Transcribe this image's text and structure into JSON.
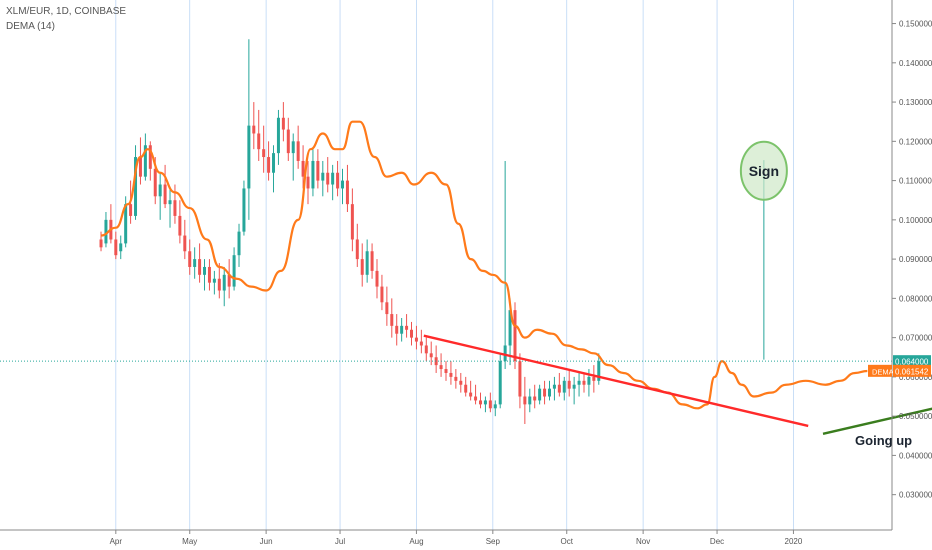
{
  "header": {
    "symbol_line": "XLM/EUR, 1D, COINBASE",
    "indicator_line": "DEMA (14)"
  },
  "price_labels": {
    "last": "0.064000",
    "dema_tag": "DEMA",
    "dema": "0.061542"
  },
  "annotations": {
    "sign": "Sign",
    "going_up": "Going up"
  },
  "colors": {
    "up": "#26a69a",
    "down": "#ef5350",
    "dema": "#ff7a1a",
    "last_price": "#26a69a",
    "red_trend": "#ff2a2a",
    "green_trend": "#3a7d1e",
    "circle": "#7cc36b"
  },
  "chart_data": {
    "type": "candlestick",
    "title": "XLM/EUR, 1D, COINBASE",
    "y_ticks": [
      "0.150000",
      "0.140000",
      "0.130000",
      "0.120000",
      "0.110000",
      "0.100000",
      "0.090000",
      "0.080000",
      "0.070000",
      "0.060000",
      "0.050000",
      "0.040000",
      "0.030000"
    ],
    "y_tick_values": [
      0.15,
      0.14,
      0.13,
      0.12,
      0.11,
      0.1,
      0.09,
      0.08,
      0.07,
      0.06,
      0.05,
      0.04,
      0.03
    ],
    "x_ticks": [
      "Apr",
      "May",
      "Jun",
      "Jul",
      "Aug",
      "Sep",
      "Oct",
      "Nov",
      "Dec",
      "2020"
    ],
    "x_tick_days": [
      0,
      30,
      61,
      91,
      122,
      153,
      183,
      214,
      244,
      275
    ],
    "ylim": [
      0.021,
      0.156
    ],
    "xlim_days": [
      -47,
      315
    ],
    "last_price": 0.064,
    "dema_last": 0.061542,
    "dema_series": [
      [
        -6,
        0.096
      ],
      [
        0,
        0.098
      ],
      [
        5,
        0.104
      ],
      [
        10,
        0.116
      ],
      [
        13,
        0.118
      ],
      [
        18,
        0.112
      ],
      [
        24,
        0.107
      ],
      [
        30,
        0.103
      ],
      [
        37,
        0.095
      ],
      [
        42,
        0.088
      ],
      [
        49,
        0.085
      ],
      [
        55,
        0.083
      ],
      [
        61,
        0.082
      ],
      [
        67,
        0.087
      ],
      [
        74,
        0.1
      ],
      [
        79,
        0.118
      ],
      [
        84,
        0.122
      ],
      [
        89,
        0.118
      ],
      [
        92,
        0.118
      ],
      [
        96,
        0.125
      ],
      [
        99,
        0.125
      ],
      [
        105,
        0.116
      ],
      [
        110,
        0.111
      ],
      [
        116,
        0.112
      ],
      [
        121,
        0.109
      ],
      [
        128,
        0.112
      ],
      [
        134,
        0.109
      ],
      [
        139,
        0.099
      ],
      [
        144,
        0.09
      ],
      [
        149,
        0.087
      ],
      [
        153,
        0.086
      ],
      [
        158,
        0.084
      ],
      [
        162,
        0.073
      ],
      [
        166,
        0.07
      ],
      [
        171,
        0.072
      ],
      [
        177,
        0.071
      ],
      [
        183,
        0.068
      ],
      [
        189,
        0.067
      ],
      [
        194,
        0.066
      ],
      [
        200,
        0.063
      ],
      [
        206,
        0.061
      ],
      [
        212,
        0.059
      ],
      [
        218,
        0.057
      ],
      [
        224,
        0.056
      ],
      [
        230,
        0.053
      ],
      [
        236,
        0.052
      ],
      [
        240,
        0.053
      ],
      [
        243,
        0.06
      ],
      [
        246,
        0.064
      ],
      [
        250,
        0.061
      ],
      [
        254,
        0.058
      ],
      [
        259,
        0.055
      ],
      [
        266,
        0.056
      ],
      [
        272,
        0.058
      ],
      [
        280,
        0.059
      ],
      [
        288,
        0.058
      ],
      [
        294,
        0.059
      ],
      [
        300,
        0.061
      ],
      [
        305,
        0.0615
      ]
    ],
    "candles": [
      [
        -6,
        0.095,
        0.097,
        0.092,
        0.093
      ],
      [
        -4,
        0.094,
        0.102,
        0.093,
        0.1
      ],
      [
        -2,
        0.1,
        0.104,
        0.094,
        0.095
      ],
      [
        0,
        0.095,
        0.097,
        0.09,
        0.091
      ],
      [
        2,
        0.092,
        0.096,
        0.09,
        0.094
      ],
      [
        4,
        0.094,
        0.106,
        0.093,
        0.104
      ],
      [
        6,
        0.104,
        0.11,
        0.099,
        0.101
      ],
      [
        8,
        0.101,
        0.119,
        0.1,
        0.116
      ],
      [
        10,
        0.116,
        0.121,
        0.109,
        0.111
      ],
      [
        12,
        0.111,
        0.122,
        0.11,
        0.119
      ],
      [
        14,
        0.119,
        0.12,
        0.11,
        0.113
      ],
      [
        16,
        0.113,
        0.116,
        0.104,
        0.106
      ],
      [
        18,
        0.106,
        0.112,
        0.1,
        0.109
      ],
      [
        20,
        0.109,
        0.114,
        0.103,
        0.104
      ],
      [
        22,
        0.104,
        0.108,
        0.098,
        0.105
      ],
      [
        24,
        0.105,
        0.109,
        0.099,
        0.101
      ],
      [
        26,
        0.101,
        0.105,
        0.094,
        0.096
      ],
      [
        28,
        0.096,
        0.1,
        0.09,
        0.092
      ],
      [
        30,
        0.092,
        0.095,
        0.086,
        0.088
      ],
      [
        32,
        0.088,
        0.093,
        0.085,
        0.09
      ],
      [
        34,
        0.09,
        0.094,
        0.084,
        0.086
      ],
      [
        36,
        0.086,
        0.09,
        0.082,
        0.088
      ],
      [
        38,
        0.088,
        0.09,
        0.082,
        0.084
      ],
      [
        40,
        0.084,
        0.087,
        0.081,
        0.085
      ],
      [
        42,
        0.085,
        0.089,
        0.08,
        0.082
      ],
      [
        44,
        0.082,
        0.088,
        0.078,
        0.086
      ],
      [
        46,
        0.086,
        0.09,
        0.08,
        0.083
      ],
      [
        48,
        0.083,
        0.093,
        0.082,
        0.091
      ],
      [
        50,
        0.091,
        0.099,
        0.088,
        0.097
      ],
      [
        52,
        0.097,
        0.11,
        0.096,
        0.108
      ],
      [
        54,
        0.108,
        0.146,
        0.1,
        0.124
      ],
      [
        56,
        0.124,
        0.13,
        0.118,
        0.122
      ],
      [
        58,
        0.122,
        0.128,
        0.115,
        0.118
      ],
      [
        60,
        0.118,
        0.124,
        0.112,
        0.116
      ],
      [
        62,
        0.116,
        0.12,
        0.11,
        0.112
      ],
      [
        64,
        0.112,
        0.119,
        0.107,
        0.117
      ],
      [
        66,
        0.117,
        0.128,
        0.114,
        0.126
      ],
      [
        68,
        0.126,
        0.13,
        0.12,
        0.123
      ],
      [
        70,
        0.123,
        0.126,
        0.115,
        0.117
      ],
      [
        72,
        0.117,
        0.122,
        0.11,
        0.12
      ],
      [
        74,
        0.12,
        0.124,
        0.113,
        0.115
      ],
      [
        76,
        0.115,
        0.119,
        0.108,
        0.111
      ],
      [
        78,
        0.111,
        0.115,
        0.104,
        0.108
      ],
      [
        80,
        0.108,
        0.118,
        0.106,
        0.115
      ],
      [
        82,
        0.115,
        0.118,
        0.108,
        0.11
      ],
      [
        84,
        0.11,
        0.115,
        0.106,
        0.112
      ],
      [
        86,
        0.112,
        0.116,
        0.107,
        0.109
      ],
      [
        88,
        0.109,
        0.114,
        0.105,
        0.112
      ],
      [
        90,
        0.112,
        0.115,
        0.106,
        0.108
      ],
      [
        92,
        0.108,
        0.113,
        0.104,
        0.11
      ],
      [
        94,
        0.11,
        0.114,
        0.102,
        0.104
      ],
      [
        96,
        0.104,
        0.108,
        0.092,
        0.095
      ],
      [
        98,
        0.095,
        0.099,
        0.088,
        0.09
      ],
      [
        100,
        0.09,
        0.094,
        0.083,
        0.086
      ],
      [
        102,
        0.086,
        0.095,
        0.084,
        0.092
      ],
      [
        104,
        0.092,
        0.094,
        0.085,
        0.087
      ],
      [
        106,
        0.087,
        0.09,
        0.08,
        0.083
      ],
      [
        108,
        0.083,
        0.086,
        0.077,
        0.079
      ],
      [
        110,
        0.079,
        0.083,
        0.073,
        0.076
      ],
      [
        112,
        0.076,
        0.08,
        0.07,
        0.073
      ],
      [
        114,
        0.073,
        0.076,
        0.068,
        0.071
      ],
      [
        116,
        0.071,
        0.075,
        0.069,
        0.073
      ],
      [
        118,
        0.073,
        0.076,
        0.07,
        0.072
      ],
      [
        120,
        0.072,
        0.074,
        0.068,
        0.07
      ],
      [
        122,
        0.07,
        0.073,
        0.067,
        0.069
      ],
      [
        124,
        0.069,
        0.072,
        0.066,
        0.068
      ],
      [
        126,
        0.068,
        0.07,
        0.064,
        0.066
      ],
      [
        128,
        0.066,
        0.069,
        0.063,
        0.065
      ],
      [
        130,
        0.065,
        0.068,
        0.061,
        0.063
      ],
      [
        132,
        0.063,
        0.066,
        0.06,
        0.062
      ],
      [
        134,
        0.062,
        0.064,
        0.059,
        0.061
      ],
      [
        136,
        0.061,
        0.064,
        0.058,
        0.06
      ],
      [
        138,
        0.06,
        0.062,
        0.057,
        0.059
      ],
      [
        140,
        0.059,
        0.061,
        0.056,
        0.058
      ],
      [
        142,
        0.058,
        0.06,
        0.055,
        0.056
      ],
      [
        144,
        0.056,
        0.059,
        0.054,
        0.055
      ],
      [
        146,
        0.055,
        0.058,
        0.053,
        0.054
      ],
      [
        148,
        0.054,
        0.056,
        0.052,
        0.053
      ],
      [
        150,
        0.053,
        0.055,
        0.051,
        0.054
      ],
      [
        152,
        0.054,
        0.056,
        0.051,
        0.052
      ],
      [
        154,
        0.052,
        0.054,
        0.05,
        0.053
      ],
      [
        156,
        0.053,
        0.066,
        0.052,
        0.064
      ],
      [
        158,
        0.064,
        0.115,
        0.062,
        0.068
      ],
      [
        160,
        0.068,
        0.08,
        0.063,
        0.077
      ],
      [
        162,
        0.077,
        0.079,
        0.062,
        0.064
      ],
      [
        164,
        0.064,
        0.066,
        0.052,
        0.055
      ],
      [
        166,
        0.055,
        0.06,
        0.048,
        0.053
      ],
      [
        168,
        0.053,
        0.057,
        0.051,
        0.055
      ],
      [
        170,
        0.055,
        0.058,
        0.052,
        0.054
      ],
      [
        172,
        0.054,
        0.058,
        0.053,
        0.057
      ],
      [
        174,
        0.057,
        0.059,
        0.053,
        0.055
      ],
      [
        176,
        0.055,
        0.059,
        0.054,
        0.057
      ],
      [
        178,
        0.057,
        0.06,
        0.054,
        0.058
      ],
      [
        180,
        0.058,
        0.061,
        0.055,
        0.056
      ],
      [
        182,
        0.056,
        0.06,
        0.054,
        0.059
      ],
      [
        184,
        0.059,
        0.062,
        0.055,
        0.057
      ],
      [
        186,
        0.057,
        0.06,
        0.053,
        0.058
      ],
      [
        188,
        0.058,
        0.061,
        0.055,
        0.059
      ],
      [
        190,
        0.059,
        0.061,
        0.056,
        0.058
      ],
      [
        192,
        0.058,
        0.062,
        0.055,
        0.06
      ],
      [
        194,
        0.06,
        0.063,
        0.056,
        0.059
      ],
      [
        196,
        0.059,
        0.066,
        0.058,
        0.064
      ]
    ]
  }
}
